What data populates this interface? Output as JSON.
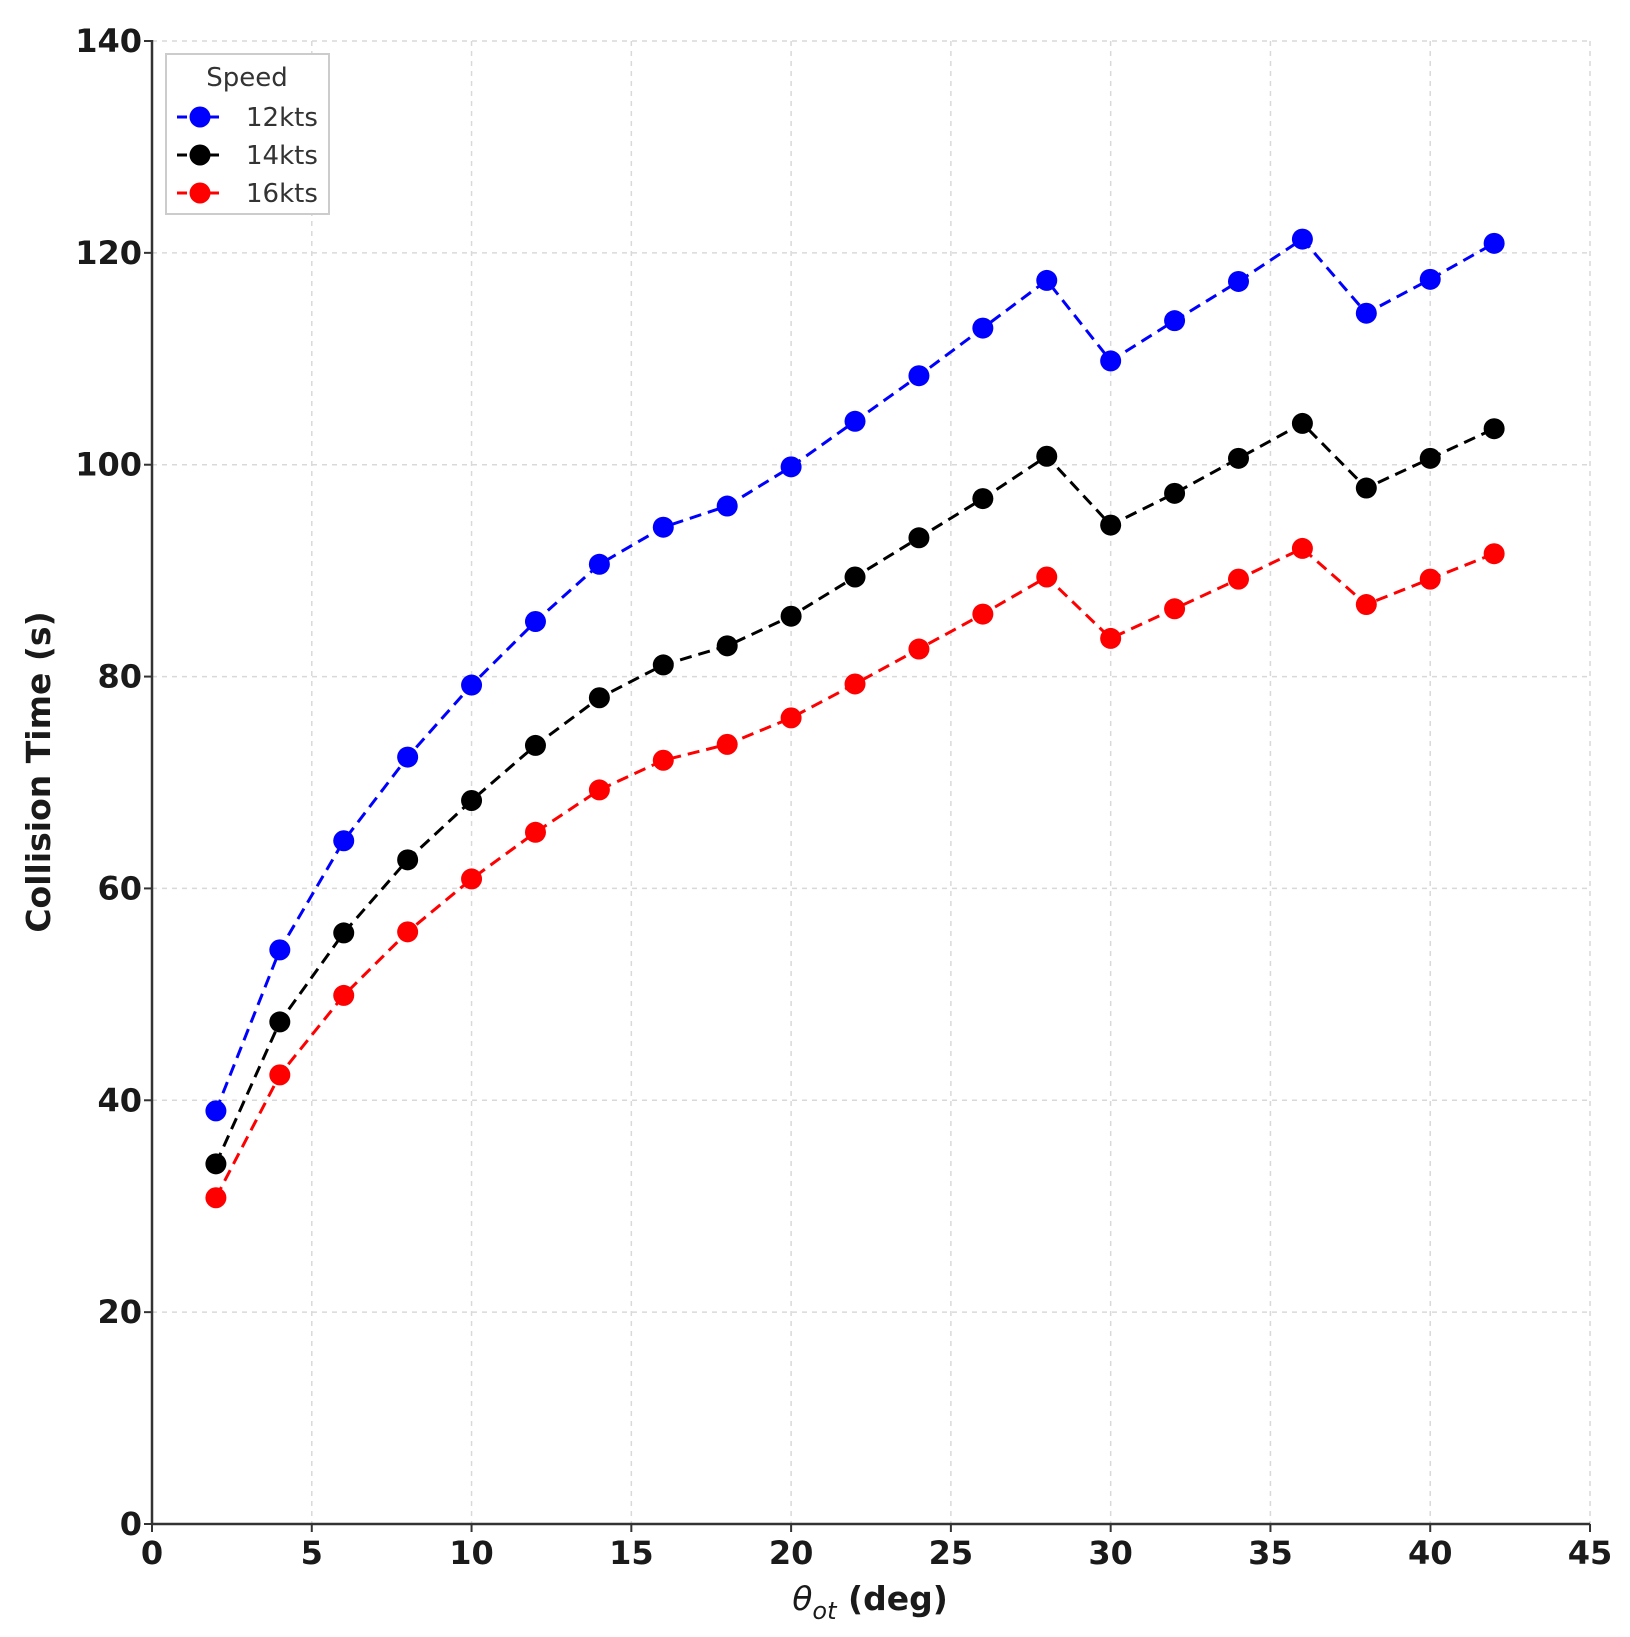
{
  "chart_data": {
    "type": "line",
    "xlabel": "θot (deg)",
    "xlabel_main": "θ",
    "xlabel_sub": "ot",
    "xlabel_rest": " (deg)",
    "ylabel": "Collision Time (s)",
    "xlim": [
      0,
      45
    ],
    "ylim": [
      0,
      140
    ],
    "xticks": [
      0,
      5,
      10,
      15,
      20,
      25,
      30,
      35,
      40,
      45
    ],
    "yticks": [
      0,
      20,
      40,
      60,
      80,
      100,
      120,
      140
    ],
    "grid": true,
    "legend_title": "Speed",
    "legend_position": "top-left",
    "x": [
      2,
      4,
      6,
      8,
      10,
      12,
      14,
      16,
      18,
      20,
      22,
      24,
      26,
      28,
      30,
      32,
      34,
      36,
      38,
      40,
      42
    ],
    "series": [
      {
        "name": "12kts",
        "color": "#0000ff",
        "values": [
          39,
          54.2,
          64.5,
          72.4,
          79.2,
          85.2,
          90.6,
          94.1,
          96.1,
          99.8,
          104.1,
          108.4,
          112.9,
          117.4,
          109.8,
          113.6,
          117.3,
          121.3,
          114.3,
          117.5,
          120.9
        ]
      },
      {
        "name": "14kts",
        "color": "#000000",
        "values": [
          34,
          47.4,
          55.8,
          62.7,
          68.3,
          73.5,
          78,
          81.1,
          82.9,
          85.7,
          89.4,
          93.1,
          96.8,
          100.8,
          94.3,
          97.3,
          100.6,
          103.9,
          97.8,
          100.6,
          103.4
        ]
      },
      {
        "name": "16kts",
        "color": "#ff0000",
        "values": [
          30.8,
          42.4,
          49.9,
          55.9,
          60.9,
          65.3,
          69.3,
          72.1,
          73.6,
          76.1,
          79.3,
          82.6,
          85.9,
          89.4,
          83.6,
          86.4,
          89.2,
          92.1,
          86.8,
          89.2,
          91.6
        ]
      }
    ]
  }
}
